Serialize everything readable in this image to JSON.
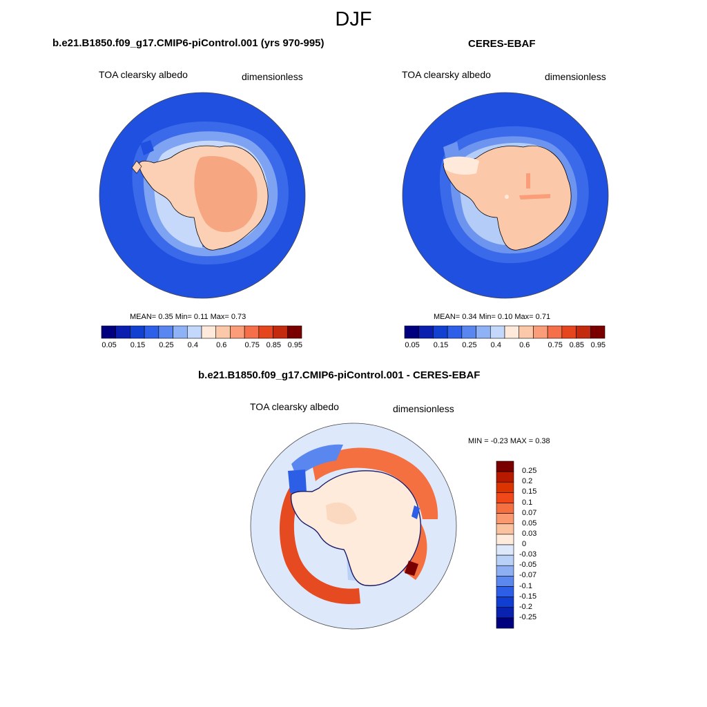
{
  "season": "DJF",
  "panels": [
    {
      "title": "b.e21.B1850.f09_g17.CMIP6-piControl.001 (yrs 970-995)",
      "variable": "TOA clearsky albedo",
      "units": "dimensionless",
      "stats": "MEAN=   0.35  Min=   0.11  Max=   0.73"
    },
    {
      "title": "CERES-EBAF",
      "variable": "TOA clearsky albedo",
      "units": "dimensionless",
      "stats": "MEAN=   0.34  Min=   0.10  Max=   0.71"
    },
    {
      "title": "b.e21.B1850.f09_g17.CMIP6-piControl.001 - CERES-EBAF",
      "variable": "TOA clearsky albedo",
      "units": "dimensionless",
      "stats": "MIN =  -0.23 MAX =   0.38"
    }
  ],
  "colorbar_main": {
    "colors": [
      "#00007f",
      "#0a1fb0",
      "#1240d0",
      "#2d5fe8",
      "#5a86f0",
      "#8fb1f6",
      "#c3d8fb",
      "#ffe9da",
      "#fcc8aa",
      "#fa9d78",
      "#f5704a",
      "#e6461e",
      "#c42a0e",
      "#7a0000"
    ],
    "ticks": [
      "0.05",
      "0.15",
      "0.25",
      "0.4",
      "0.6",
      "0.75",
      "0.85",
      "0.95"
    ]
  },
  "colorbar_diff": {
    "colors": [
      "#7a0000",
      "#b81a00",
      "#dc3400",
      "#f04818",
      "#f57040",
      "#fa9870",
      "#fbc2a0",
      "#feebdb",
      "#dde9fb",
      "#b9d0f7",
      "#8eb0f3",
      "#5b88ee",
      "#2d5ee6",
      "#103ed0",
      "#0a22b0",
      "#00007f"
    ],
    "ticks": [
      "0.25",
      "0.2",
      "0.15",
      "0.1",
      "0.07",
      "0.05",
      "0.03",
      "0",
      "-0.03",
      "-0.05",
      "-0.07",
      "-0.1",
      "-0.15",
      "-0.2",
      "-0.25"
    ]
  }
}
